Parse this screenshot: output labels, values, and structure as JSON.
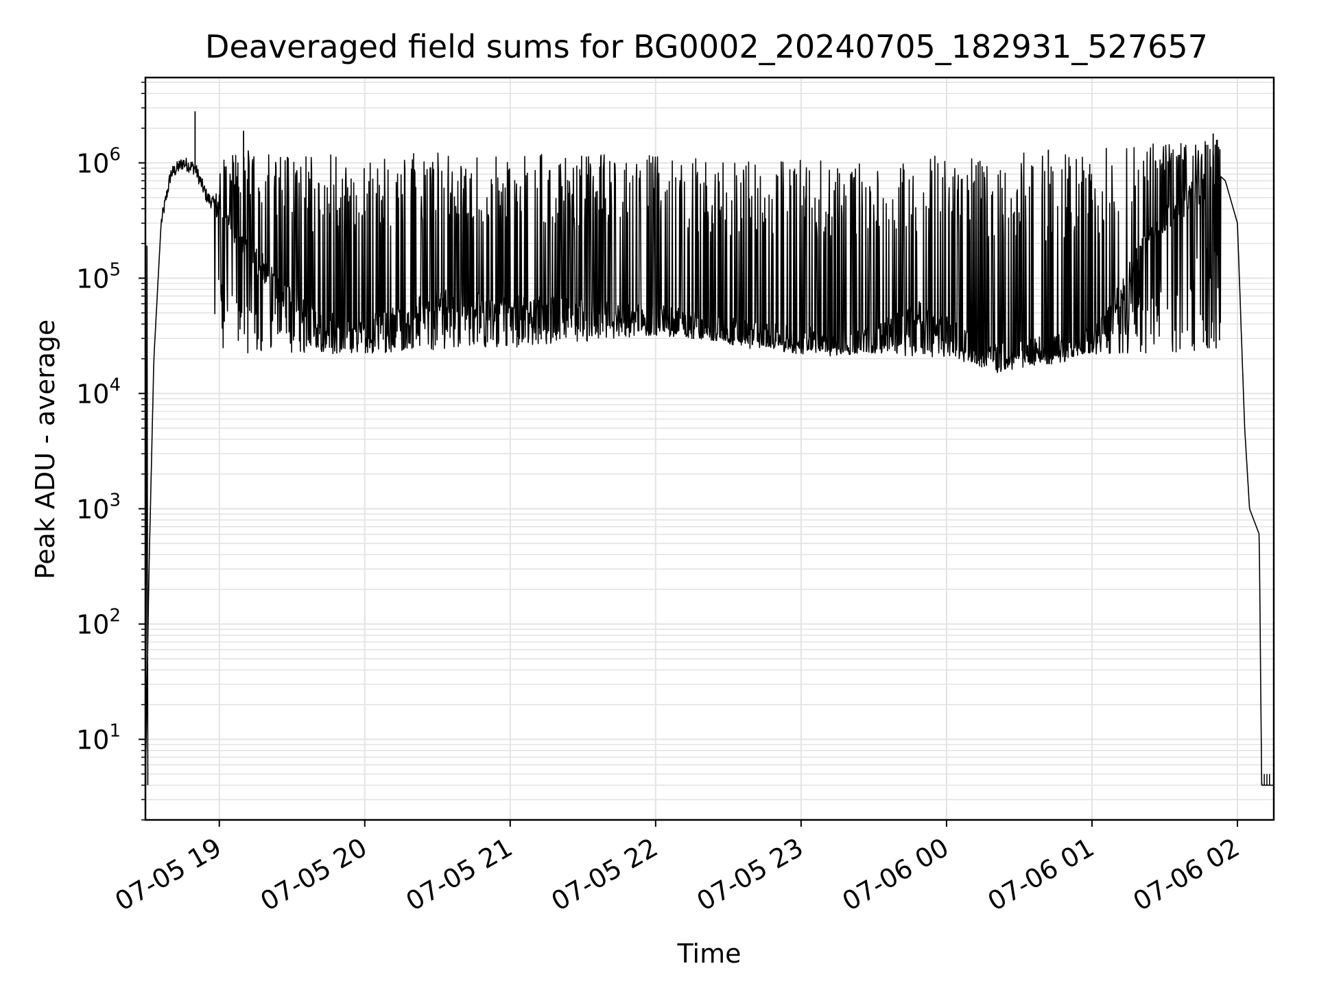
{
  "chart_data": {
    "type": "line",
    "title": "Deaveraged field sums for BG0002_20240705_182931_527657",
    "xlabel": "Time",
    "ylabel": "Peak ADU - average",
    "x_tick_labels": [
      "07-05 19",
      "07-05 20",
      "07-05 21",
      "07-05 22",
      "07-05 23",
      "07-06 00",
      "07-06 01",
      "07-06 02"
    ],
    "x_ticks_hours": [
      19,
      20,
      21,
      22,
      23,
      24,
      25,
      26
    ],
    "y_tick_labels": [
      {
        "base": "10",
        "exp": "1",
        "value": 10
      },
      {
        "base": "10",
        "exp": "2",
        "value": 100
      },
      {
        "base": "10",
        "exp": "3",
        "value": 1000
      },
      {
        "base": "10",
        "exp": "4",
        "value": 10000
      },
      {
        "base": "10",
        "exp": "5",
        "value": 100000
      },
      {
        "base": "10",
        "exp": "6",
        "value": 1000000
      }
    ],
    "xlim": [
      "07-05 18:29:31",
      "07-06 02:15:00"
    ],
    "ylim": [
      2,
      5500000
    ],
    "yscale": "log",
    "grid": true,
    "line_color": "#000000",
    "series": [
      {
        "x": [
          "07-05 18:29:31",
          "07-05 18:31",
          "07-05 18:33",
          "07-05 18:36",
          "07-05 18:40",
          "07-05 18:45",
          "07-05 18:50",
          "07-05 18:55",
          "07-05 19:00",
          "07-05 19:05",
          "07-05 19:15",
          "07-05 19:25",
          "07-05 19:35",
          "07-05 19:45",
          "07-05 20:00",
          "07-05 20:30",
          "07-05 21:00",
          "07-05 21:30",
          "07-05 22:00",
          "07-05 22:30",
          "07-05 22:50",
          "07-05 23:10",
          "07-05 23:30",
          "07-05 23:50",
          "07-06 00:10",
          "07-06 00:20",
          "07-06 00:30",
          "07-06 00:50",
          "07-06 01:05",
          "07-06 01:15",
          "07-06 01:25",
          "07-06 01:35",
          "07-06 01:45",
          "07-06 01:52",
          "07-06 01:55",
          "07-06 02:00",
          "07-06 02:03",
          "07-06 02:05",
          "07-06 02:09",
          "07-06 02:10",
          "07-06 02:15"
        ],
        "y": [
          4,
          300,
          20000,
          300000,
          800000,
          1000000,
          900000,
          500000,
          400000,
          280000,
          150000,
          80000,
          50000,
          40000,
          35000,
          60000,
          55000,
          50000,
          45000,
          35000,
          30000,
          28000,
          30000,
          50000,
          25000,
          20000,
          22000,
          25000,
          35000,
          100000,
          250000,
          400000,
          600000,
          800000,
          700000,
          300000,
          5000,
          1000,
          600,
          4,
          4
        ]
      }
    ],
    "upper_envelope": {
      "x": [
        "07-05 18:55",
        "07-05 19:10",
        "07-05 20:00",
        "07-05 21:00",
        "07-05 22:00",
        "07-05 22:45",
        "07-05 23:10",
        "07-05 23:50",
        "07-06 00:20",
        "07-06 00:50",
        "07-06 01:30",
        "07-06 01:50"
      ],
      "y": [
        900000,
        1300000,
        1250000,
        1200000,
        1200000,
        1000000,
        1100000,
        1200000,
        1200000,
        1250000,
        1500000,
        1600000
      ]
    },
    "lower_envelope": {
      "x": [
        "07-05 19:35",
        "07-05 20:00",
        "07-05 21:00",
        "07-05 21:30",
        "07-05 22:00",
        "07-05 22:30",
        "07-05 23:00",
        "07-05 23:30",
        "07-06 00:20",
        "07-06 00:40",
        "07-06 01:00"
      ],
      "y": [
        22000,
        22000,
        25000,
        28000,
        32000,
        28000,
        24000,
        22000,
        18000,
        19000,
        22000
      ]
    },
    "spikes": [
      {
        "x": "07-05 18:50",
        "y": 2800000
      },
      {
        "x": "07-05 19:10",
        "y": 1900000
      },
      {
        "x": "07-06 00:42",
        "y": 1300000
      },
      {
        "x": "07-06 01:50",
        "y": 1800000
      }
    ]
  }
}
